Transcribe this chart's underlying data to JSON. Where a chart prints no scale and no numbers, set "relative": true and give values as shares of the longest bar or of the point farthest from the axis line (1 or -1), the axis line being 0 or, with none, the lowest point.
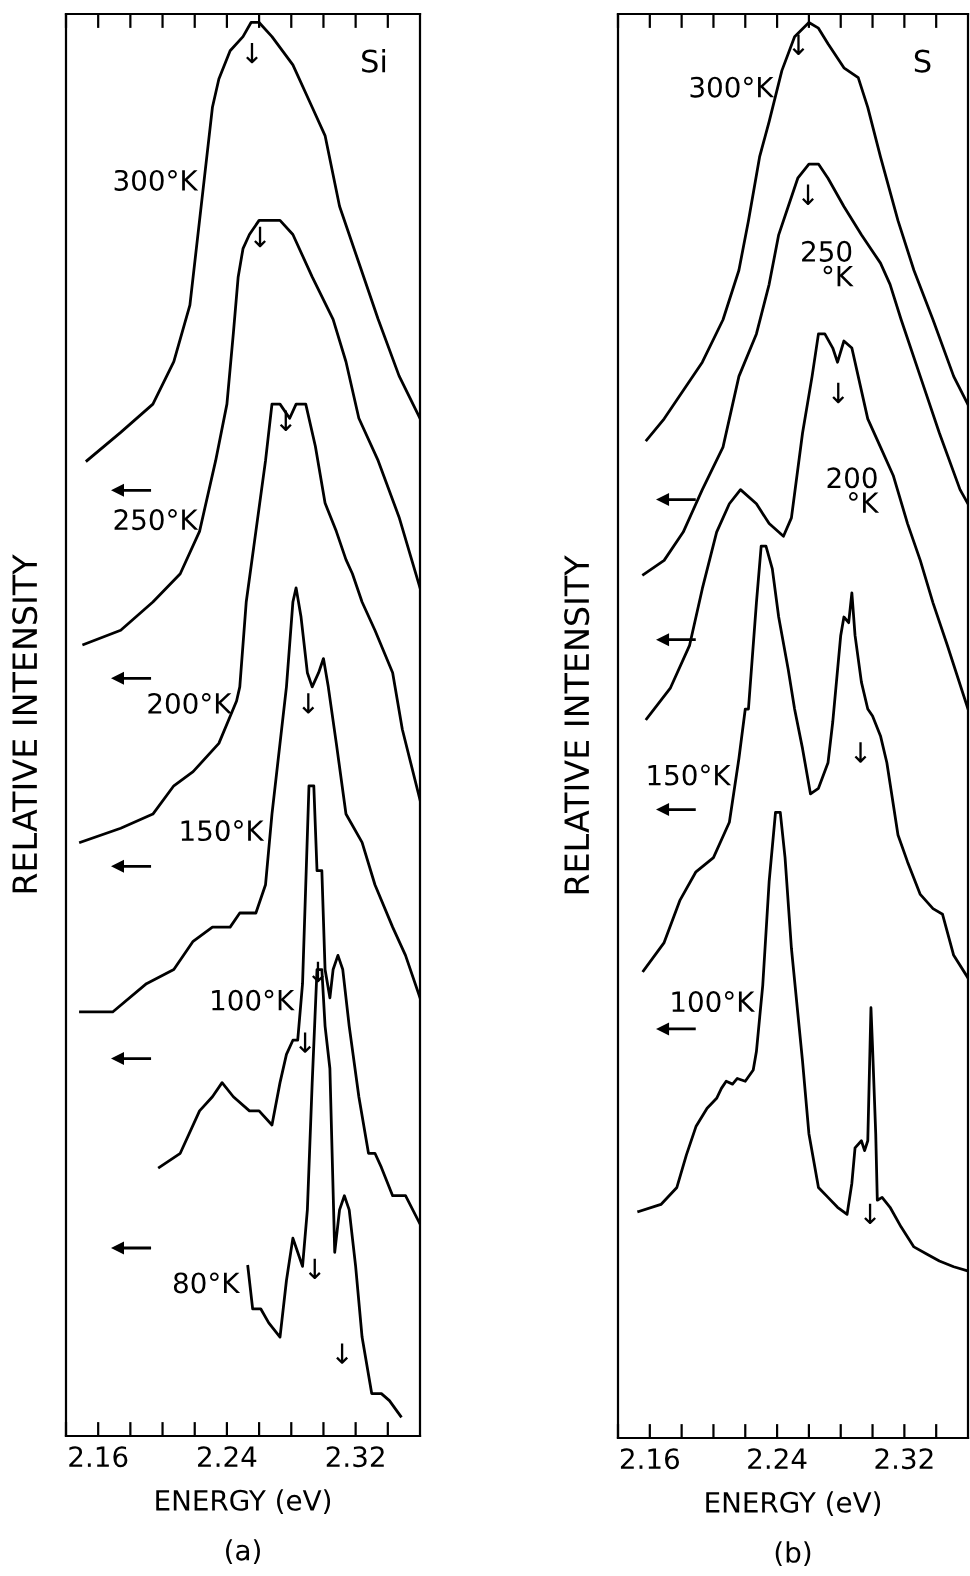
{
  "chart_data": [
    {
      "type": "line",
      "title": "Si",
      "xlabel": "ENERGY (eV)",
      "ylabel": "RELATIVE INTENSITY",
      "relative": true,
      "grid": false,
      "marker": "none",
      "line_style": "solid",
      "tick_labels": "x",
      "xlim": [
        2.14,
        2.36
      ],
      "xticks": [
        {
          "value": 2.14,
          "label": null
        },
        2.16,
        {
          "value": 2.18,
          "label": null
        },
        {
          "value": 2.2,
          "label": null
        },
        {
          "value": 2.22,
          "label": null
        },
        2.24,
        {
          "value": 2.26,
          "label": null
        },
        {
          "value": 2.28,
          "label": null
        },
        {
          "value": 2.3,
          "label": null
        },
        2.32,
        {
          "value": 2.34,
          "label": null
        }
      ],
      "series": [
        {
          "color": "#000000",
          "x": [
            2.153,
            2.174,
            2.194,
            2.207,
            2.217,
            2.223,
            2.227,
            2.231,
            2.235,
            2.242,
            2.25,
            2.255,
            2.26,
            2.268,
            2.281,
            2.293,
            2.301,
            2.31,
            2.322,
            2.334,
            2.347,
            2.36
          ],
          "values": [
            0.69,
            0.71,
            0.73,
            0.76,
            0.8,
            0.86,
            0.9,
            0.94,
            0.96,
            0.98,
            0.99,
            1.0,
            1.0,
            0.99,
            0.97,
            0.94,
            0.92,
            0.87,
            0.83,
            0.79,
            0.75,
            0.72
          ]
        },
        {
          "color": "#000000",
          "x": [
            2.151,
            2.174,
            2.194,
            2.211,
            2.223,
            2.233,
            2.24,
            2.244,
            2.247,
            2.25,
            2.254,
            2.26,
            2.268,
            2.273,
            2.281,
            2.293,
            2.306,
            2.314,
            2.322,
            2.334,
            2.347,
            2.36
          ],
          "values": [
            0.56,
            0.57,
            0.59,
            0.61,
            0.64,
            0.69,
            0.73,
            0.78,
            0.82,
            0.84,
            0.85,
            0.86,
            0.86,
            0.86,
            0.85,
            0.82,
            0.79,
            0.76,
            0.72,
            0.69,
            0.65,
            0.6
          ]
        },
        {
          "color": "#000000",
          "x": [
            2.149,
            2.174,
            2.194,
            2.207,
            2.219,
            2.235,
            2.246,
            2.248,
            2.252,
            2.258,
            2.264,
            2.268,
            2.273,
            2.279,
            2.283,
            2.289,
            2.295,
            2.301,
            2.308,
            2.314,
            2.318,
            2.324,
            2.332,
            2.343,
            2.349,
            2.36
          ],
          "values": [
            0.42,
            0.43,
            0.44,
            0.46,
            0.47,
            0.49,
            0.52,
            0.53,
            0.59,
            0.64,
            0.69,
            0.73,
            0.73,
            0.72,
            0.73,
            0.73,
            0.7,
            0.66,
            0.64,
            0.62,
            0.61,
            0.59,
            0.57,
            0.54,
            0.5,
            0.45
          ]
        },
        {
          "color": "#000000",
          "x": [
            2.149,
            2.169,
            2.19,
            2.207,
            2.219,
            2.231,
            2.237,
            2.242,
            2.248,
            2.258,
            2.264,
            2.268,
            2.273,
            2.277,
            2.281,
            2.283,
            2.286,
            2.29,
            2.293,
            2.297,
            2.3,
            2.303,
            2.308,
            2.314,
            2.324,
            2.332,
            2.343,
            2.351,
            2.36
          ],
          "values": [
            0.3,
            0.3,
            0.32,
            0.33,
            0.35,
            0.36,
            0.36,
            0.36,
            0.37,
            0.37,
            0.39,
            0.44,
            0.49,
            0.53,
            0.59,
            0.6,
            0.58,
            0.54,
            0.53,
            0.54,
            0.55,
            0.53,
            0.49,
            0.44,
            0.42,
            0.39,
            0.36,
            0.34,
            0.31
          ]
        },
        {
          "color": "#000000",
          "x": [
            2.198,
            2.211,
            2.223,
            2.231,
            2.237,
            2.244,
            2.254,
            2.26,
            2.268,
            2.273,
            2.277,
            2.281,
            2.284,
            2.287,
            2.289,
            2.291,
            2.294,
            2.296,
            2.299,
            2.301,
            2.304,
            2.306,
            2.309,
            2.312,
            2.316,
            2.322,
            2.328,
            2.332,
            2.336,
            2.343,
            2.351,
            2.36
          ],
          "values": [
            0.19,
            0.2,
            0.23,
            0.24,
            0.25,
            0.24,
            0.23,
            0.23,
            0.22,
            0.25,
            0.27,
            0.28,
            0.28,
            0.32,
            0.39,
            0.46,
            0.46,
            0.4,
            0.4,
            0.33,
            0.31,
            0.33,
            0.34,
            0.33,
            0.29,
            0.24,
            0.2,
            0.2,
            0.19,
            0.17,
            0.17,
            0.15
          ]
        },
        {
          "type": "scatter",
          "marker": "triangle",
          "color": "#000000",
          "x": [
            2.172,
            2.172,
            2.172,
            2.172,
            2.172
          ],
          "values": [
            0.669,
            0.536,
            0.403,
            0.267,
            0.133
          ]
        },
        {
          "color": "#000000",
          "x": [
            2.253,
            2.256,
            2.261,
            2.266,
            2.273,
            2.277,
            2.281,
            2.284,
            2.287,
            2.29,
            2.293,
            2.296,
            2.299,
            2.301,
            2.304,
            2.307,
            2.31,
            2.313,
            2.316,
            2.32,
            2.324,
            2.33,
            2.336,
            2.341,
            2.348
          ],
          "values": [
            0.12,
            0.09,
            0.09,
            0.08,
            0.07,
            0.11,
            0.14,
            0.13,
            0.12,
            0.16,
            0.25,
            0.33,
            0.33,
            0.29,
            0.26,
            0.13,
            0.16,
            0.17,
            0.16,
            0.12,
            0.07,
            0.03,
            0.03,
            0.025,
            0.014
          ]
        }
      ],
      "annotations": [
        {
          "text": "300°K",
          "x": 2.227,
          "y": 0.9
        },
        {
          "text": "250°K",
          "x": 2.227,
          "y": 0.66
        },
        {
          "text": "200°K",
          "x": 2.248,
          "y": 0.53
        },
        {
          "text": "150°K",
          "x": 2.268,
          "y": 0.44
        },
        {
          "text": "100°K",
          "x": 2.287,
          "y": 0.32
        },
        {
          "text": "80°K",
          "x": 2.253,
          "y": 0.12
        },
        {
          "text": "↓",
          "x": 2.268,
          "y": 0.99
        },
        {
          "text": "↓",
          "x": 2.273,
          "y": 0.86
        },
        {
          "text": "↓",
          "x": 2.289,
          "y": 0.73
        },
        {
          "text": "↓",
          "x": 2.303,
          "y": 0.53
        },
        {
          "text": "↓",
          "x": 2.309,
          "y": 0.34
        },
        {
          "text": "↓",
          "x": 2.324,
          "y": 0.07
        },
        {
          "text": "↓",
          "x": 2.301,
          "y": 0.29
        },
        {
          "text": "↓",
          "x": 2.307,
          "y": 0.13
        },
        "(a)"
      ]
    },
    {
      "type": "line",
      "title": "S",
      "xlabel": "ENERGY (eV)",
      "ylabel": "RELATIVE INTENSITY",
      "relative": true,
      "grid": false,
      "marker": "none",
      "line_style": "solid",
      "tick_labels": "x",
      "xlim": [
        2.14,
        2.36
      ],
      "xticks": [
        {
          "value": 2.14,
          "label": null
        },
        2.16,
        {
          "value": 2.18,
          "label": null
        },
        {
          "value": 2.2,
          "label": null
        },
        {
          "value": 2.22,
          "label": null
        },
        2.24,
        {
          "value": 2.26,
          "label": null
        },
        {
          "value": 2.28,
          "label": null
        },
        {
          "value": 2.3,
          "label": null
        },
        2.32,
        {
          "value": 2.34,
          "label": null
        }
      ],
      "series": [
        {
          "color": "#000000",
          "x": [
            2.158,
            2.169,
            2.181,
            2.193,
            2.206,
            2.216,
            2.222,
            2.229,
            2.235,
            2.243,
            2.251,
            2.26,
            2.266,
            2.272,
            2.282,
            2.291,
            2.297,
            2.305,
            2.316,
            2.326,
            2.338,
            2.351,
            2.36
          ],
          "values": [
            0.705,
            0.72,
            0.74,
            0.76,
            0.79,
            0.825,
            0.86,
            0.905,
            0.93,
            0.966,
            0.99,
            1.0,
            0.996,
            0.985,
            0.968,
            0.961,
            0.94,
            0.905,
            0.86,
            0.825,
            0.79,
            0.75,
            0.73
          ]
        },
        {
          "color": "#000000",
          "x": [
            2.156,
            2.169,
            2.181,
            2.193,
            2.206,
            2.216,
            2.227,
            2.235,
            2.241,
            2.247,
            2.253,
            2.26,
            2.266,
            2.272,
            2.282,
            2.293,
            2.305,
            2.311,
            2.318,
            2.33,
            2.342,
            2.355,
            2.36
          ],
          "values": [
            0.61,
            0.62,
            0.64,
            0.67,
            0.7,
            0.75,
            0.78,
            0.815,
            0.85,
            0.87,
            0.89,
            0.9,
            0.9,
            0.89,
            0.87,
            0.85,
            0.83,
            0.815,
            0.79,
            0.75,
            0.71,
            0.67,
            0.66
          ]
        },
        {
          "color": "#000000",
          "x": [
            2.158,
            2.173,
            2.185,
            2.193,
            2.202,
            2.21,
            2.217,
            2.227,
            2.235,
            2.244,
            2.249,
            2.256,
            2.262,
            2.266,
            2.27,
            2.275,
            2.278,
            2.282,
            2.287,
            2.291,
            2.297,
            2.305,
            2.313,
            2.322,
            2.33,
            2.338,
            2.347,
            2.36
          ],
          "values": [
            0.508,
            0.53,
            0.56,
            0.6,
            0.64,
            0.66,
            0.67,
            0.66,
            0.646,
            0.637,
            0.65,
            0.71,
            0.75,
            0.78,
            0.78,
            0.77,
            0.76,
            0.775,
            0.77,
            0.75,
            0.72,
            0.7,
            0.68,
            0.646,
            0.62,
            0.59,
            0.56,
            0.515
          ]
        },
        {
          "color": "#000000",
          "x": [
            2.156,
            2.169,
            2.179,
            2.189,
            2.2,
            2.21,
            2.216,
            2.22,
            2.222,
            2.227,
            2.23,
            2.233,
            2.237,
            2.241,
            2.247,
            2.251,
            2.256,
            2.261,
            2.266,
            2.272,
            2.275,
            2.28,
            2.282,
            2.285,
            2.287,
            2.289,
            2.293,
            2.297,
            2.3,
            2.305,
            2.309,
            2.316,
            2.322,
            2.33,
            2.338,
            2.344,
            2.351,
            2.36
          ],
          "values": [
            0.33,
            0.35,
            0.38,
            0.4,
            0.41,
            0.435,
            0.48,
            0.515,
            0.515,
            0.59,
            0.63,
            0.63,
            0.614,
            0.58,
            0.543,
            0.515,
            0.487,
            0.455,
            0.459,
            0.477,
            0.506,
            0.567,
            0.58,
            0.576,
            0.597,
            0.567,
            0.534,
            0.515,
            0.51,
            0.496,
            0.477,
            0.426,
            0.407,
            0.384,
            0.374,
            0.37,
            0.341,
            0.325
          ]
        },
        {
          "type": "scatter",
          "marker": "triangle",
          "color": "#000000",
          "x": [
            2.168,
            2.168,
            2.168,
            2.168
          ],
          "values": [
            0.663,
            0.564,
            0.444,
            0.289
          ]
        },
        {
          "color": "#000000",
          "x": [
            2.153,
            2.167,
            2.177,
            2.183,
            2.189,
            2.196,
            2.202,
            2.205,
            2.208,
            2.212,
            2.215,
            2.22,
            2.225,
            2.227,
            2.231,
            2.235,
            2.239,
            2.242,
            2.245,
            2.249,
            2.256,
            2.26,
            2.266,
            2.272,
            2.278,
            2.284,
            2.287,
            2.289,
            2.293,
            2.295,
            2.297,
            2.299,
            2.3,
            2.302,
            2.303,
            2.306,
            2.311,
            2.318,
            2.326,
            2.334,
            2.342,
            2.351,
            2.36
          ],
          "values": [
            0.16,
            0.165,
            0.177,
            0.2,
            0.22,
            0.233,
            0.24,
            0.247,
            0.252,
            0.25,
            0.254,
            0.252,
            0.26,
            0.273,
            0.32,
            0.393,
            0.442,
            0.442,
            0.41,
            0.346,
            0.266,
            0.215,
            0.177,
            0.17,
            0.163,
            0.158,
            0.18,
            0.205,
            0.21,
            0.203,
            0.21,
            0.304,
            0.276,
            0.215,
            0.168,
            0.17,
            0.163,
            0.149,
            0.135,
            0.13,
            0.125,
            0.121,
            0.118
          ]
        }
      ],
      "annotations": [
        {
          "text": "300°K",
          "x": 2.243,
          "y": 0.966
        },
        {
          "text": "250\n°K",
          "x": 2.293,
          "y": 0.85
        },
        {
          "text": "200\n°K",
          "x": 2.309,
          "y": 0.69
        },
        {
          "text": "150°K",
          "x": 2.216,
          "y": 0.48
        },
        {
          "text": "100°K",
          "x": 2.231,
          "y": 0.32
        },
        {
          "text": "↓",
          "x": 2.266,
          "y": 0.996
        },
        {
          "text": "↓",
          "x": 2.272,
          "y": 0.89
        },
        {
          "text": "↓",
          "x": 2.291,
          "y": 0.75
        },
        {
          "text": "↓",
          "x": 2.305,
          "y": 0.496
        },
        {
          "text": "↓",
          "x": 2.311,
          "y": 0.17
        },
        "(b)"
      ]
    }
  ]
}
